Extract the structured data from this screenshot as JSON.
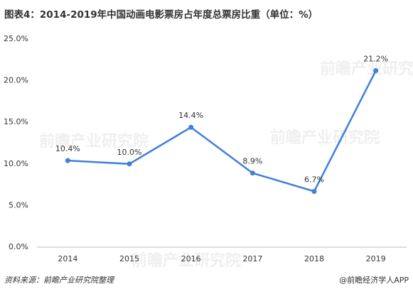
{
  "chart_data": {
    "type": "line",
    "title": "图表4：2014-2019年中国动画电影票房占年度总票房比重（单位：%）",
    "categories": [
      "2014",
      "2015",
      "2016",
      "2017",
      "2018",
      "2019"
    ],
    "series": [
      {
        "color": "#3f7fdc",
        "values": [
          10.4,
          10.0,
          14.4,
          8.9,
          6.7,
          21.2
        ],
        "value_labels": [
          "10.4%",
          "10.0%",
          "14.4%",
          "8.9%",
          "6.7%",
          "21.2%"
        ]
      }
    ],
    "ylim": [
      0,
      25
    ],
    "yticks": [
      {
        "value": 0,
        "label": "0.0%"
      },
      {
        "value": 5,
        "label": "5.0%"
      },
      {
        "value": 10,
        "label": "10.0%"
      },
      {
        "value": 15,
        "label": "15.0%"
      },
      {
        "value": 20,
        "label": "20.0%"
      },
      {
        "value": 25,
        "label": "25.0%"
      }
    ],
    "grid": false,
    "source": "资料来源：前瞻产业研究院整理",
    "credit": "@前瞻经济学人APP",
    "watermark": "前瞻产业研究院"
  }
}
